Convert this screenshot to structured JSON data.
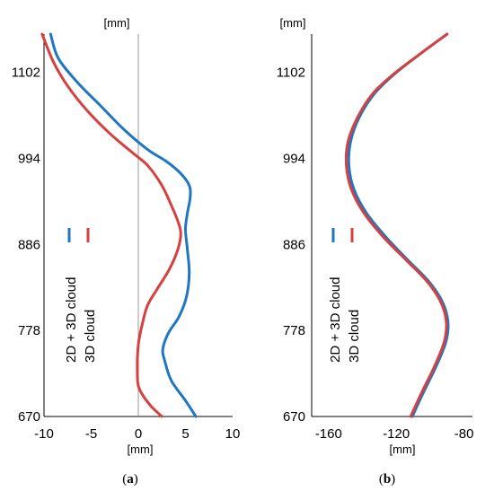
{
  "colors": {
    "blue": "#1f77c4",
    "red": "#d6403f",
    "axis": "#000000",
    "refline": "#999999"
  },
  "chart_data": [
    {
      "type": "line",
      "panel_label": {
        "open": "(",
        "letter": "a",
        "close": ")"
      },
      "xunit": "[mm]",
      "yunit": "[mm]",
      "xlim": [
        -10,
        10
      ],
      "ylim": [
        670,
        1150
      ],
      "xticks": [
        -10,
        -5,
        0,
        5,
        10
      ],
      "yticks": [
        670,
        778,
        886,
        994,
        1102
      ],
      "grid": false,
      "vertical_reference_line": 0,
      "legend": {
        "placement": "center-left",
        "orientation": "vertical-text"
      },
      "series": [
        {
          "name": "2D + 3D cloud",
          "color": "#1f77c4",
          "points": [
            [
              6.1,
              670
            ],
            [
              5,
              690
            ],
            [
              3.5,
              715
            ],
            [
              2.8,
              740
            ],
            [
              2.6,
              755
            ],
            [
              3.2,
              775
            ],
            [
              4.3,
              795
            ],
            [
              5.1,
              820
            ],
            [
              5.4,
              850
            ],
            [
              5.2,
              880
            ],
            [
              5,
              905
            ],
            [
              5.2,
              925
            ],
            [
              5.5,
              945
            ],
            [
              5.4,
              960
            ],
            [
              4.5,
              975
            ],
            [
              3,
              990
            ],
            [
              1,
              1005
            ],
            [
              -1.5,
              1030
            ],
            [
              -4,
              1060
            ],
            [
              -6.5,
              1090
            ],
            [
              -8.5,
              1120
            ],
            [
              -9.3,
              1150
            ]
          ]
        },
        {
          "name": "3D cloud",
          "color": "#d6403f",
          "points": [
            [
              2.5,
              670
            ],
            [
              1.2,
              685
            ],
            [
              0.1,
              705
            ],
            [
              -0.1,
              725
            ],
            [
              0,
              760
            ],
            [
              0.5,
              790
            ],
            [
              1,
              810
            ],
            [
              2,
              830
            ],
            [
              3.3,
              855
            ],
            [
              4.2,
              880
            ],
            [
              4.5,
              900
            ],
            [
              4.2,
              915
            ],
            [
              3.5,
              935
            ],
            [
              2.5,
              960
            ],
            [
              1,
              985
            ],
            [
              -0.5,
              1000
            ],
            [
              -3,
              1025
            ],
            [
              -5.5,
              1055
            ],
            [
              -7.5,
              1085
            ],
            [
              -9,
              1115
            ],
            [
              -10.2,
              1150
            ]
          ]
        }
      ]
    },
    {
      "type": "line",
      "panel_label": {
        "open": "(",
        "letter": "b",
        "close": ")"
      },
      "xunit": "[mm]",
      "yunit": "[mm]",
      "xlim": [
        -170,
        -75
      ],
      "ylim": [
        670,
        1150
      ],
      "xticks": [
        -160,
        -120,
        -80
      ],
      "yticks": [
        670,
        778,
        886,
        994,
        1102
      ],
      "grid": false,
      "legend": {
        "placement": "center-left",
        "orientation": "vertical-text"
      },
      "series": [
        {
          "name": "2D + 3D cloud",
          "color": "#1f77c4",
          "points": [
            [
              -110.5,
              670
            ],
            [
              -104,
              700
            ],
            [
              -96,
              735
            ],
            [
              -90.5,
              765
            ],
            [
              -89.5,
              790
            ],
            [
              -93,
              815
            ],
            [
              -101,
              840
            ],
            [
              -113,
              866
            ],
            [
              -126,
              895
            ],
            [
              -137.5,
              925
            ],
            [
              -145,
              955
            ],
            [
              -148,
              985
            ],
            [
              -147,
              1015
            ],
            [
              -142,
              1045
            ],
            [
              -133,
              1075
            ],
            [
              -121,
              1100
            ],
            [
              -106,
              1125
            ],
            [
              -90,
              1150
            ]
          ]
        },
        {
          "name": "3D cloud",
          "color": "#d6403f",
          "points": [
            [
              -111.5,
              670
            ],
            [
              -105,
              700
            ],
            [
              -97,
              735
            ],
            [
              -91.5,
              765
            ],
            [
              -90.5,
              790
            ],
            [
              -94,
              815
            ],
            [
              -102,
              840
            ],
            [
              -114,
              866
            ],
            [
              -127.5,
              895
            ],
            [
              -139,
              925
            ],
            [
              -146.5,
              955
            ],
            [
              -149.5,
              985
            ],
            [
              -148.5,
              1015
            ],
            [
              -143,
              1045
            ],
            [
              -134,
              1075
            ],
            [
              -121.5,
              1100
            ],
            [
              -106,
              1125
            ],
            [
              -90,
              1150
            ]
          ]
        }
      ]
    }
  ]
}
